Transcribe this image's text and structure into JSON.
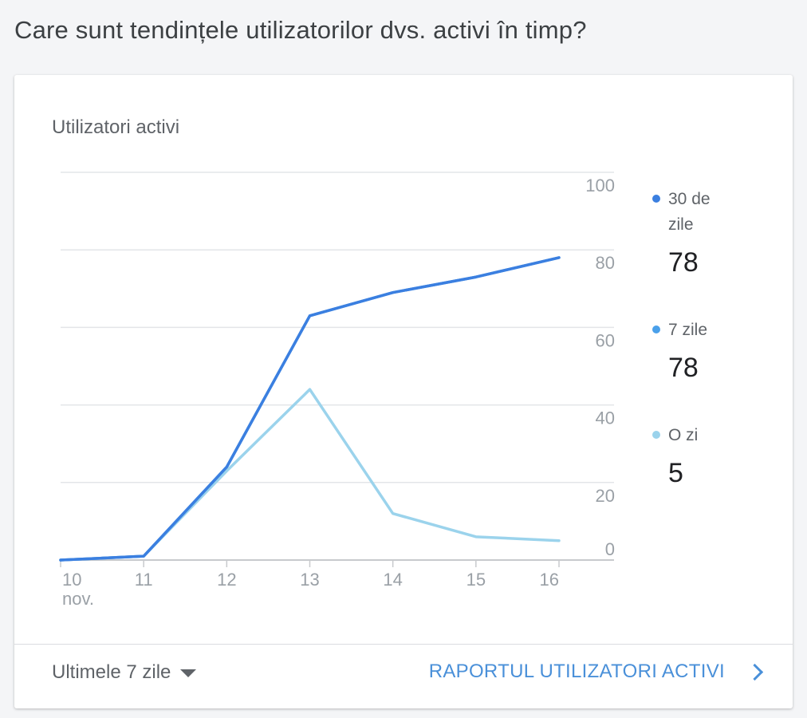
{
  "question": "Care sunt tendințele utilizatorilor dvs. activi în timp?",
  "card": {
    "title": "Utilizatori activi",
    "range_label": "Ultimele 7 zile",
    "report_link": "RAPORTUL UTILIZATORI ACTIVI"
  },
  "legend": [
    {
      "label": "30 de zile",
      "value": "78",
      "color": "#3b7fe0"
    },
    {
      "label": "7 zile",
      "value": "78",
      "color": "#4aa0ea"
    },
    {
      "label": "O zi",
      "value": "5",
      "color": "#9bd3ec"
    }
  ],
  "chart_data": {
    "type": "line",
    "title": "Utilizatori activi",
    "x": [
      "10",
      "11",
      "12",
      "13",
      "14",
      "15",
      "16"
    ],
    "x_sublabel": "nov.",
    "ylim": [
      0,
      100
    ],
    "yticks": [
      0,
      20,
      40,
      60,
      80,
      100
    ],
    "y_axis_position": "right",
    "grid": true,
    "legend_position": "right",
    "series": [
      {
        "name": "30 de zile",
        "color": "#3b7fe0",
        "values": [
          0,
          1,
          24,
          63,
          69,
          73,
          78
        ]
      },
      {
        "name": "7 zile",
        "color": "#4aa0ea",
        "values": [
          0,
          1,
          24,
          63,
          69,
          73,
          78
        ]
      },
      {
        "name": "O zi",
        "color": "#9bd3ec",
        "values": [
          0,
          1,
          23,
          44,
          12,
          6,
          5
        ]
      }
    ]
  }
}
